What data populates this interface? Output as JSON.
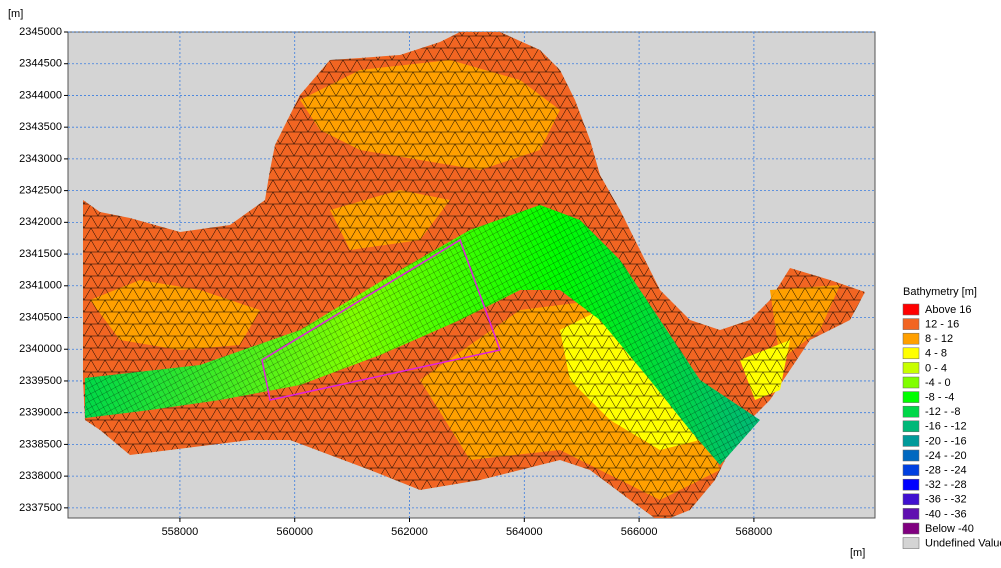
{
  "plot": {
    "x_unit": "[m]",
    "y_unit": "[m]",
    "xlim": [
      556050,
      570110
    ],
    "ylim": [
      2337340,
      2345000
    ],
    "xticks": [
      558000,
      560000,
      562000,
      564000,
      566000,
      568000
    ],
    "yticks": [
      2337500,
      2338000,
      2338500,
      2339000,
      2339500,
      2340000,
      2340500,
      2341000,
      2341500,
      2342000,
      2342500,
      2343000,
      2343500,
      2344000,
      2344500,
      2345000
    ]
  },
  "legend": {
    "title": "Bathymetry [m]",
    "items": [
      {
        "label": "Above  16",
        "color": "#ff0000"
      },
      {
        "label": "12 -  16",
        "color": "#f26522"
      },
      {
        "label": "8 -  12",
        "color": "#ffa000"
      },
      {
        "label": "4 -  8",
        "color": "#ffff00"
      },
      {
        "label": "0 -  4",
        "color": "#c8ff00"
      },
      {
        "label": "-4 -  0",
        "color": "#80ff00"
      },
      {
        "label": "-8 -  -4",
        "color": "#00ff00"
      },
      {
        "label": "-12 -  -8",
        "color": "#00d848"
      },
      {
        "label": "-16 - -12",
        "color": "#00b878"
      },
      {
        "label": "-20 - -16",
        "color": "#009a9a"
      },
      {
        "label": "-24 - -20",
        "color": "#0068c0"
      },
      {
        "label": "-28 - -24",
        "color": "#0040e0"
      },
      {
        "label": "-32 - -28",
        "color": "#0000ff"
      },
      {
        "label": "-36 - -32",
        "color": "#4010d0"
      },
      {
        "label": "-40 - -36",
        "color": "#6010b0"
      },
      {
        "label": "Below -40",
        "color": "#800080"
      },
      {
        "label": "Undefined Value",
        "color": "#d4d4d4"
      }
    ]
  }
}
